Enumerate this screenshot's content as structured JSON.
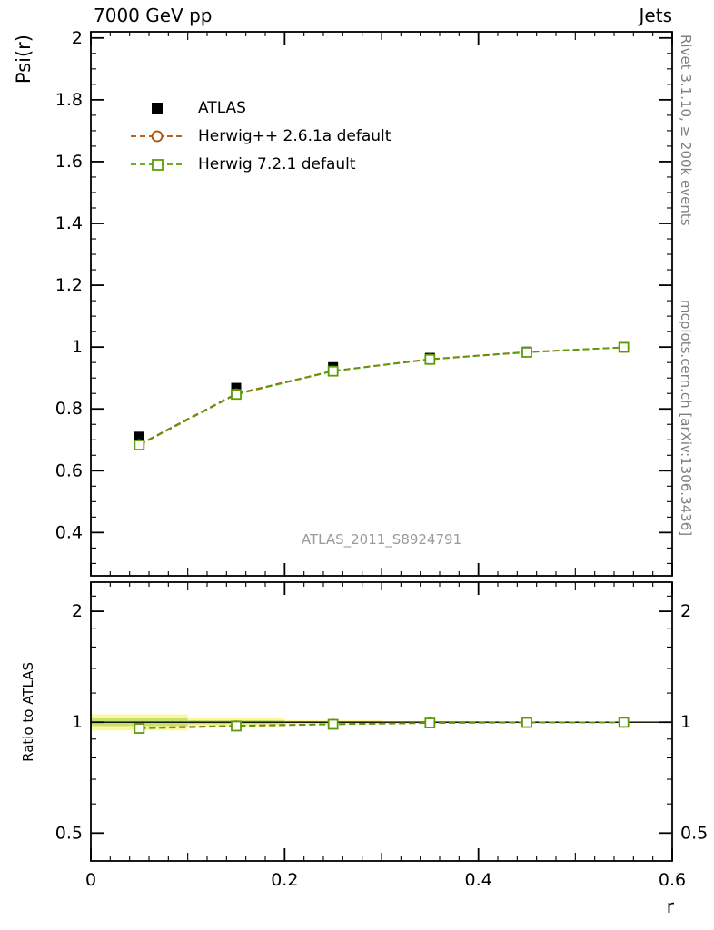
{
  "chart_data": {
    "type": "line",
    "title_left": "7000 GeV pp",
    "title_right": "Jets",
    "xlabel": "r",
    "ylabel_main": "Psi(r)",
    "ylabel_ratio": "Ratio to ATLAS",
    "watermark": "ATLAS_2011_S8924791",
    "side_text_top": "Rivet 3.1.10, ≥ 200k events",
    "side_text_bottom": "mcplots.cern.ch [arXiv:1306.3436]",
    "x": [
      0.05,
      0.15,
      0.25,
      0.35,
      0.45,
      0.55
    ],
    "xlim": [
      0,
      0.6
    ],
    "xticks": [
      0,
      0.2,
      0.4,
      0.6
    ],
    "x_minor_step": 0.02,
    "main_panel": {
      "scale": "linear",
      "ylim": [
        0.26,
        2.02
      ],
      "yticks": [
        0.4,
        0.6,
        0.8,
        1,
        1.2,
        1.4,
        1.6,
        1.8,
        2
      ],
      "y_minor_step": 0.05
    },
    "ratio_panel": {
      "scale": "log",
      "ylim": [
        0.42,
        2.4
      ],
      "yticks": [
        0.5,
        1,
        2
      ],
      "yticks_minor": [
        0.6,
        0.7,
        0.8,
        0.9,
        1.2,
        1.4,
        1.6,
        1.8,
        2.2
      ]
    },
    "ref_line": 1,
    "series": [
      {
        "name": "ATLAS",
        "role": "data",
        "marker": "filled-square",
        "color": "#000000",
        "values": [
          0.71,
          0.868,
          0.935,
          0.965,
          0.985,
          1.0
        ],
        "errors": [
          0.012,
          0.008,
          0.006,
          0.005,
          0.004,
          0.003
        ]
      },
      {
        "name": "Herwig++ 2.6.1a default",
        "role": "mc",
        "marker": "open-circle",
        "color": "#aa4f00",
        "line_style": "dashed",
        "values": [
          0.685,
          0.849,
          0.923,
          0.961,
          0.984,
          0.999
        ],
        "ratio": [
          0.965,
          0.978,
          0.988,
          0.996,
          0.999,
          0.999
        ]
      },
      {
        "name": "Herwig 7.2.1 default",
        "role": "mc",
        "marker": "open-square",
        "color": "#5d9c08",
        "line_style": "dashed",
        "values": [
          0.683,
          0.847,
          0.922,
          0.96,
          0.983,
          0.999
        ],
        "ratio": [
          0.962,
          0.976,
          0.987,
          0.995,
          0.998,
          0.999
        ]
      }
    ],
    "ratio_band": {
      "outer_color": "#fff599",
      "inner_color": "#c4e176",
      "x_edges": [
        0,
        0.1,
        0.2,
        0.3,
        0.4,
        0.5,
        0.6
      ],
      "outer_half": [
        0.05,
        0.025,
        0.012,
        0.008,
        0.006,
        0.005
      ],
      "inner_half": [
        0.024,
        0.012,
        0.006,
        0.004,
        0.003,
        0.0025
      ]
    }
  }
}
